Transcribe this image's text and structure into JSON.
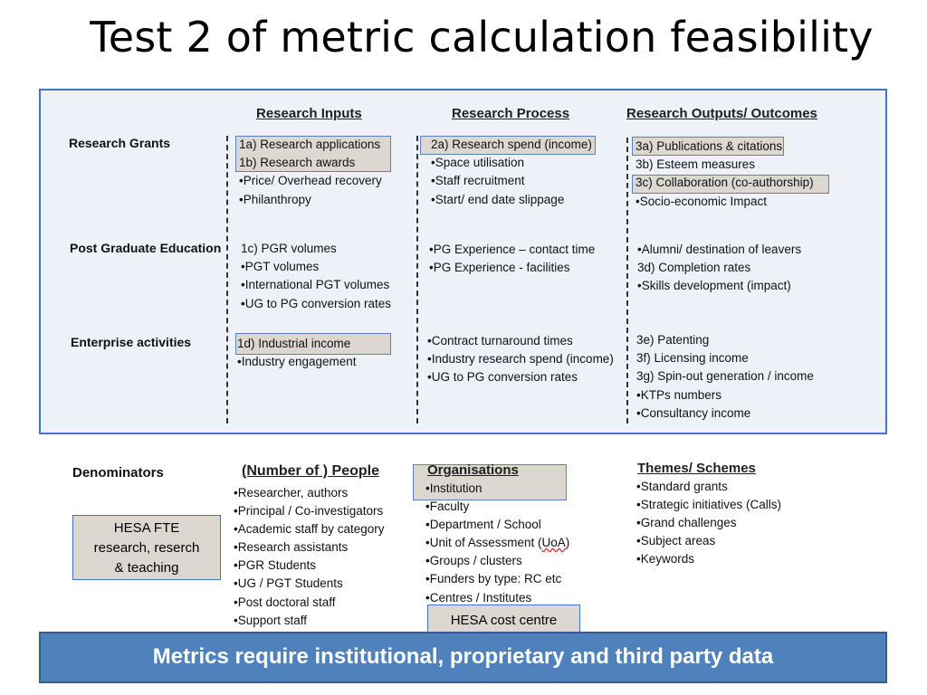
{
  "slide": {
    "title": "Test 2 of metric calculation feasibility",
    "columns": {
      "inputs": "Research Inputs",
      "process": "Research Process",
      "outputs": "Research Outputs/ Outcomes"
    },
    "rows": {
      "grants": "Research Grants",
      "pge": "Post Graduate Education",
      "enterprise": "Enterprise activities"
    },
    "grants": {
      "inputs": [
        "1a) Research applications",
        "1b) Research awards",
        "•Price/ Overhead recovery",
        "•Philanthropy"
      ],
      "process": [
        "2a) Research spend (income)",
        "•Space utilisation",
        "•Staff recruitment",
        "•Start/ end date slippage"
      ],
      "outputs": [
        "3a) Publications & citations",
        "3b) Esteem measures",
        "3c) Collaboration (co-authorship)",
        "•Socio-economic Impact"
      ]
    },
    "pge": {
      "inputs": [
        "1c) PGR volumes",
        "•PGT volumes",
        "•International PGT volumes",
        "•UG to PG conversion rates"
      ],
      "process": [
        "•PG Experience – contact time",
        "•PG Experience - facilities"
      ],
      "outputs": [
        "•Alumni/ destination of leavers",
        "3d) Completion rates",
        "•Skills development (impact)"
      ]
    },
    "enterprise": {
      "inputs": [
        "1d) Industrial income",
        "•Industry engagement"
      ],
      "process": [
        "•Contract turnaround times",
        "•Industry research spend (income)",
        "•UG to PG conversion rates"
      ],
      "outputs": [
        "3e) Patenting",
        "3f) Licensing income",
        "3g) Spin-out generation / income",
        "•KTPs numbers",
        "•Consultancy income"
      ]
    },
    "denominators": {
      "label": "Denominators",
      "people_header": "(Number of ) People",
      "people": [
        "•Researcher, authors",
        "•Principal / Co-investigators",
        "•Academic staff by category",
        "•Research assistants",
        "•PGR Students",
        "•UG / PGT Students",
        "•Post doctoral staff",
        "•Support staff"
      ],
      "org_header": "Organisations",
      "orgs": [
        "•Institution",
        "•Faculty",
        "•Department / School",
        "•Unit of Assessment (",
        "UoA",
        ")",
        "•Groups / clusters",
        "•Funders by type: RC etc",
        "•Centres / Institutes"
      ],
      "themes_header": "Themes/ Schemes",
      "themes": [
        "•Standard grants",
        "•Strategic initiatives (Calls)",
        "•Grand challenges",
        "•Subject areas",
        "•Keywords"
      ]
    },
    "hesa_fte": [
      "HESA FTE",
      "research, reserch",
      "& teaching"
    ],
    "hesa_cost": "HESA cost centre",
    "banner": "Metrics require institutional, proprietary and third party data"
  }
}
